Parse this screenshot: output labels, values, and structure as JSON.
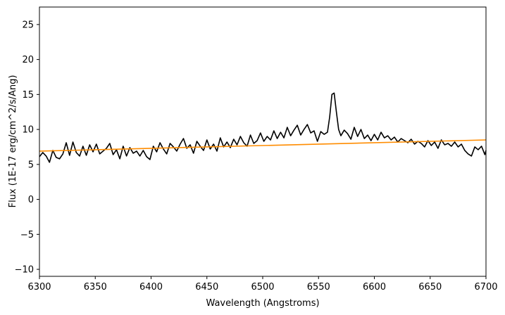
{
  "chart_data": {
    "type": "line",
    "title": "",
    "xlabel": "Wavelength (Angstroms)",
    "ylabel": "Flux (1E-17 erg/cm^2/s/Ang)",
    "xlim": [
      6300,
      6700
    ],
    "ylim": [
      -11,
      27.5
    ],
    "grid": false,
    "legend": "none",
    "x_ticks": [
      6300,
      6350,
      6400,
      6450,
      6500,
      6550,
      6600,
      6650,
      6700
    ],
    "x_tick_labels": [
      "6300",
      "6350",
      "6400",
      "6450",
      "6500",
      "6550",
      "6600",
      "6650",
      "6700"
    ],
    "y_ticks": [
      -10,
      -5,
      0,
      5,
      10,
      15,
      20,
      25
    ],
    "y_tick_labels": [
      "−10",
      "−5",
      "0",
      "5",
      "10",
      "15",
      "20",
      "25"
    ],
    "series": [
      {
        "color": "#000000",
        "x": [
          6300,
          6303,
          6306,
          6309,
          6312,
          6315,
          6318,
          6321,
          6324,
          6327,
          6330,
          6333,
          6336,
          6339,
          6342,
          6345,
          6348,
          6351,
          6354,
          6357,
          6360,
          6363,
          6366,
          6369,
          6372,
          6375,
          6378,
          6381,
          6384,
          6387,
          6390,
          6393,
          6396,
          6399,
          6402,
          6405,
          6408,
          6411,
          6414,
          6417,
          6420,
          6423,
          6426,
          6429,
          6432,
          6435,
          6438,
          6441,
          6444,
          6447,
          6450,
          6453,
          6456,
          6459,
          6462,
          6465,
          6468,
          6471,
          6474,
          6477,
          6480,
          6483,
          6486,
          6489,
          6492,
          6495,
          6498,
          6501,
          6504,
          6507,
          6510,
          6513,
          6516,
          6519,
          6522,
          6525,
          6528,
          6531,
          6534,
          6537,
          6540,
          6543,
          6546,
          6549,
          6552,
          6555,
          6558,
          6560,
          6562,
          6564,
          6566,
          6568,
          6570,
          6573,
          6576,
          6579,
          6582,
          6585,
          6588,
          6591,
          6594,
          6597,
          6600,
          6603,
          6606,
          6609,
          6612,
          6615,
          6618,
          6621,
          6624,
          6627,
          6630,
          6633,
          6636,
          6639,
          6642,
          6645,
          6648,
          6651,
          6654,
          6657,
          6660,
          6663,
          6666,
          6669,
          6672,
          6675,
          6678,
          6681,
          6684,
          6687,
          6690,
          6693,
          6696,
          6699,
          6700
        ],
        "y": [
          6.1,
          6.7,
          6.2,
          5.3,
          7.0,
          6.0,
          5.8,
          6.5,
          8.1,
          6.3,
          8.2,
          6.7,
          6.2,
          7.6,
          6.3,
          7.8,
          6.8,
          7.9,
          6.5,
          6.9,
          7.3,
          8.0,
          6.4,
          7.1,
          5.8,
          7.6,
          6.2,
          7.4,
          6.6,
          6.9,
          6.2,
          7.0,
          6.1,
          5.7,
          7.6,
          6.8,
          8.1,
          7.2,
          6.5,
          8.0,
          7.5,
          6.9,
          7.9,
          8.7,
          7.3,
          7.8,
          6.6,
          8.3,
          7.6,
          7.0,
          8.5,
          7.2,
          7.9,
          6.9,
          8.8,
          7.5,
          8.2,
          7.4,
          8.6,
          7.8,
          9.0,
          8.1,
          7.6,
          9.2,
          8.0,
          8.4,
          9.5,
          8.3,
          9.0,
          8.5,
          9.8,
          8.7,
          9.6,
          8.8,
          10.3,
          9.1,
          9.9,
          10.6,
          9.2,
          10.0,
          10.7,
          9.5,
          9.8,
          8.3,
          9.7,
          9.3,
          9.6,
          11.8,
          15.0,
          15.2,
          12.5,
          10.0,
          9.1,
          9.9,
          9.4,
          8.6,
          10.3,
          9.0,
          10.0,
          8.7,
          9.2,
          8.4,
          9.3,
          8.5,
          9.6,
          8.8,
          9.1,
          8.5,
          8.9,
          8.2,
          8.7,
          8.4,
          8.1,
          8.6,
          7.9,
          8.3,
          8.0,
          7.5,
          8.4,
          7.7,
          8.2,
          7.3,
          8.5,
          7.8,
          8.0,
          7.6,
          8.2,
          7.5,
          7.9,
          7.0,
          6.5,
          6.2,
          7.5,
          7.1,
          7.6,
          6.4,
          7.0
        ]
      },
      {
        "color": "#ff8c00",
        "x": [
          6300,
          6700
        ],
        "y": [
          6.9,
          8.5
        ]
      }
    ]
  }
}
